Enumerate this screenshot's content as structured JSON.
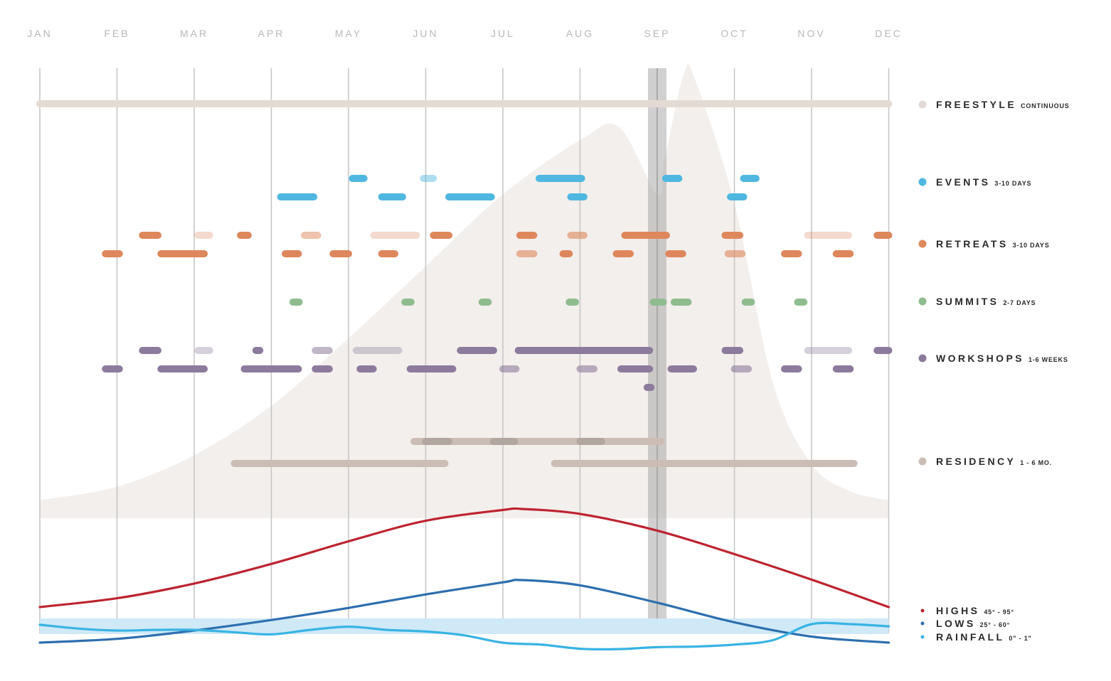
{
  "chart_data": {
    "type": "timeline",
    "months": [
      "JAN",
      "FEB",
      "MAR",
      "APR",
      "MAY",
      "JUN",
      "JUL",
      "AUG",
      "SEP",
      "OCT",
      "NOV",
      "DEC"
    ],
    "xlim": [
      0,
      11
    ],
    "highlight_month": 8.0,
    "seasonal_area": {
      "x": [
        0,
        1,
        2,
        3,
        4,
        5,
        6,
        7,
        7.5,
        8.0,
        8.1,
        8.35,
        8.5,
        9,
        9.5,
        10,
        10.5,
        11
      ],
      "y": [
        0.04,
        0.07,
        0.14,
        0.25,
        0.4,
        0.56,
        0.72,
        0.84,
        0.87,
        0.72,
        0.8,
        0.99,
        0.97,
        0.7,
        0.3,
        0.12,
        0.06,
        0.04
      ]
    },
    "categories": [
      {
        "name": "FREESTYLE",
        "duration": "CONTINUOUS",
        "color": "#e3dad6",
        "lanes": [
          [
            {
              "start": 0,
              "end": 11,
              "opacity": 1
            }
          ]
        ]
      },
      {
        "name": "EVENTS",
        "duration": "3-10 DAYS",
        "color": "#4fb7e0",
        "lanes": [
          [
            {
              "start": 4.05,
              "end": 4.2,
              "opacity": 1
            },
            {
              "start": 4.97,
              "end": 5.1,
              "opacity": 0.45
            },
            {
              "start": 6.47,
              "end": 7.02,
              "opacity": 1
            },
            {
              "start": 8.11,
              "end": 8.28,
              "opacity": 1
            },
            {
              "start": 9.12,
              "end": 9.28,
              "opacity": 1
            }
          ],
          [
            {
              "start": 3.12,
              "end": 3.55,
              "opacity": 1
            },
            {
              "start": 4.43,
              "end": 4.7,
              "opacity": 1
            },
            {
              "start": 5.3,
              "end": 5.85,
              "opacity": 1
            },
            {
              "start": 6.88,
              "end": 7.05,
              "opacity": 1
            },
            {
              "start": 8.95,
              "end": 9.12,
              "opacity": 1
            }
          ]
        ]
      },
      {
        "name": "RETREATS",
        "duration": "3-10 DAYS",
        "color": "#de875c",
        "lanes": [
          [
            {
              "start": 1.33,
              "end": 1.53,
              "opacity": 1
            },
            {
              "start": 2.05,
              "end": 2.2,
              "opacity": 0.3
            },
            {
              "start": 2.6,
              "end": 2.7,
              "opacity": 1
            },
            {
              "start": 3.43,
              "end": 3.6,
              "opacity": 0.5
            },
            {
              "start": 4.33,
              "end": 4.88,
              "opacity": 0.3
            },
            {
              "start": 5.1,
              "end": 5.3,
              "opacity": 1
            },
            {
              "start": 6.22,
              "end": 6.4,
              "opacity": 1
            },
            {
              "start": 6.88,
              "end": 7.05,
              "opacity": 0.6
            },
            {
              "start": 7.58,
              "end": 8.12,
              "opacity": 1
            },
            {
              "start": 8.88,
              "end": 9.07,
              "opacity": 1
            },
            {
              "start": 9.95,
              "end": 10.48,
              "opacity": 0.3
            },
            {
              "start": 10.85,
              "end": 11.0,
              "opacity": 1
            }
          ],
          [
            {
              "start": 0.85,
              "end": 1.03,
              "opacity": 1
            },
            {
              "start": 1.57,
              "end": 2.13,
              "opacity": 1
            },
            {
              "start": 3.18,
              "end": 3.35,
              "opacity": 1
            },
            {
              "start": 3.8,
              "end": 4.0,
              "opacity": 1
            },
            {
              "start": 4.43,
              "end": 4.6,
              "opacity": 1
            },
            {
              "start": 6.22,
              "end": 6.4,
              "opacity": 0.6
            },
            {
              "start": 6.78,
              "end": 6.86,
              "opacity": 1
            },
            {
              "start": 7.47,
              "end": 7.65,
              "opacity": 1
            },
            {
              "start": 8.15,
              "end": 8.33,
              "opacity": 1
            },
            {
              "start": 8.92,
              "end": 9.1,
              "opacity": 0.6
            },
            {
              "start": 9.65,
              "end": 9.83,
              "opacity": 1
            },
            {
              "start": 10.32,
              "end": 10.5,
              "opacity": 1
            }
          ]
        ]
      },
      {
        "name": "SUMMITS",
        "duration": "2-7 DAYS",
        "color": "#8fbc8f",
        "lanes": [
          [
            {
              "start": 3.28,
              "end": 3.36,
              "opacity": 1
            },
            {
              "start": 4.73,
              "end": 4.81,
              "opacity": 1
            },
            {
              "start": 5.73,
              "end": 5.81,
              "opacity": 1
            },
            {
              "start": 6.86,
              "end": 6.94,
              "opacity": 1
            },
            {
              "start": 7.95,
              "end": 8.08,
              "opacity": 1
            },
            {
              "start": 8.22,
              "end": 8.4,
              "opacity": 1
            },
            {
              "start": 9.14,
              "end": 9.22,
              "opacity": 1
            },
            {
              "start": 9.82,
              "end": 9.9,
              "opacity": 1
            }
          ]
        ]
      },
      {
        "name": "WORKSHOPS",
        "duration": "1-6 WEEKS",
        "color": "#8c7b9c",
        "lanes": [
          [
            {
              "start": 1.33,
              "end": 1.53,
              "opacity": 1
            },
            {
              "start": 2.05,
              "end": 2.2,
              "opacity": 0.35
            },
            {
              "start": 2.8,
              "end": 2.85,
              "opacity": 1
            },
            {
              "start": 3.57,
              "end": 3.75,
              "opacity": 0.55
            },
            {
              "start": 4.1,
              "end": 4.65,
              "opacity": 0.35
            },
            {
              "start": 5.45,
              "end": 5.88,
              "opacity": 1
            },
            {
              "start": 6.2,
              "end": 7.9,
              "opacity": 1
            },
            {
              "start": 8.88,
              "end": 9.07,
              "opacity": 1
            },
            {
              "start": 9.95,
              "end": 10.48,
              "opacity": 0.35
            },
            {
              "start": 10.85,
              "end": 11.0,
              "opacity": 1
            }
          ],
          [
            {
              "start": 0.85,
              "end": 1.03,
              "opacity": 1
            },
            {
              "start": 1.57,
              "end": 2.13,
              "opacity": 1
            },
            {
              "start": 2.65,
              "end": 3.35,
              "opacity": 1
            },
            {
              "start": 3.57,
              "end": 3.75,
              "opacity": 1
            },
            {
              "start": 4.15,
              "end": 4.32,
              "opacity": 1
            },
            {
              "start": 4.8,
              "end": 5.35,
              "opacity": 1
            },
            {
              "start": 6.0,
              "end": 6.17,
              "opacity": 0.6
            },
            {
              "start": 7.0,
              "end": 7.18,
              "opacity": 0.6
            },
            {
              "start": 7.53,
              "end": 7.9,
              "opacity": 1
            },
            {
              "start": 8.18,
              "end": 8.47,
              "opacity": 1
            },
            {
              "start": 9.0,
              "end": 9.18,
              "opacity": 0.6
            },
            {
              "start": 9.65,
              "end": 9.83,
              "opacity": 1
            },
            {
              "start": 10.32,
              "end": 10.5,
              "opacity": 1
            }
          ],
          [
            {
              "start": 7.87,
              "end": 7.92,
              "opacity": 1
            }
          ]
        ]
      },
      {
        "name": "RESIDENCY",
        "duration": "1 - 6 MO.",
        "color": "#cbbdb5",
        "lanes": [
          [
            {
              "start": 4.85,
              "end": 8.05,
              "opacity": 1
            },
            {
              "start": 5.0,
              "end": 5.3,
              "opacity": 0.7,
              "color": "#a89d98"
            },
            {
              "start": 5.88,
              "end": 6.15,
              "opacity": 0.7,
              "color": "#a89d98"
            },
            {
              "start": 7.0,
              "end": 7.28,
              "opacity": 0.7,
              "color": "#a89d98"
            }
          ],
          [
            {
              "start": 2.52,
              "end": 5.25,
              "opacity": 1
            },
            {
              "start": 6.67,
              "end": 10.55,
              "opacity": 1
            }
          ]
        ]
      }
    ],
    "climate": [
      {
        "name": "HIGHS",
        "range": "45° - 95°",
        "color": "#bd2430",
        "x": [
          0,
          1,
          2,
          3,
          4,
          5,
          6,
          6.25,
          7,
          8,
          9,
          10,
          11
        ],
        "y": [
          0.0,
          0.09,
          0.24,
          0.44,
          0.67,
          0.88,
          0.99,
          1.0,
          0.95,
          0.78,
          0.54,
          0.28,
          0.0
        ]
      },
      {
        "name": "LOWS",
        "range": "25° - 60°",
        "color": "#2e6fae",
        "x": [
          0,
          1,
          2,
          3,
          4,
          5,
          6,
          6.25,
          7,
          8,
          9,
          10,
          11
        ],
        "y": [
          0.0,
          0.05,
          0.16,
          0.3,
          0.46,
          0.64,
          0.8,
          0.83,
          0.76,
          0.53,
          0.27,
          0.08,
          0.0
        ]
      },
      {
        "name": "RAINFALL",
        "range": "0\" - 1\"",
        "color": "#38b3e4",
        "x": [
          0,
          0.5,
          1,
          1.5,
          2,
          2.5,
          3,
          3.5,
          4,
          4.5,
          5,
          5.5,
          6,
          6.5,
          7,
          7.5,
          8,
          8.5,
          9,
          9.5,
          10,
          10.5,
          11
        ],
        "y": [
          0.78,
          0.66,
          0.6,
          0.62,
          0.62,
          0.55,
          0.48,
          0.62,
          0.72,
          0.62,
          0.57,
          0.45,
          0.22,
          0.16,
          0.03,
          0.02,
          0.08,
          0.1,
          0.16,
          0.3,
          0.8,
          0.8,
          0.73
        ]
      }
    ]
  }
}
